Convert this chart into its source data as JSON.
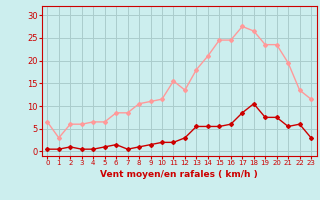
{
  "hours": [
    0,
    1,
    2,
    3,
    4,
    5,
    6,
    7,
    8,
    9,
    10,
    11,
    12,
    13,
    14,
    15,
    16,
    17,
    18,
    19,
    20,
    21,
    22,
    23
  ],
  "vent_moyen": [
    0.5,
    0.5,
    1,
    0.5,
    0.5,
    1,
    1.5,
    0.5,
    1,
    1.5,
    2,
    2,
    3,
    5.5,
    5.5,
    5.5,
    6,
    8.5,
    10.5,
    7.5,
    7.5,
    5.5,
    6,
    3
  ],
  "rafales": [
    6.5,
    3,
    6,
    6,
    6.5,
    6.5,
    8.5,
    8.5,
    10.5,
    11,
    11.5,
    15.5,
    13.5,
    18,
    21,
    24.5,
    24.5,
    27.5,
    26.5,
    23.5,
    23.5,
    19.5,
    13.5,
    11.5
  ],
  "moyen_color": "#cc0000",
  "rafales_color": "#ff9999",
  "bg_color": "#cceeee",
  "grid_color": "#aacccc",
  "ylabel_ticks": [
    0,
    5,
    10,
    15,
    20,
    25,
    30
  ],
  "ylim": [
    -1,
    32
  ],
  "xlabel": "Vent moyen/en rafales ( km/h )",
  "xlabel_color": "#cc0000",
  "tick_color": "#cc0000",
  "marker": "D",
  "markersize": 2,
  "linewidth": 1
}
